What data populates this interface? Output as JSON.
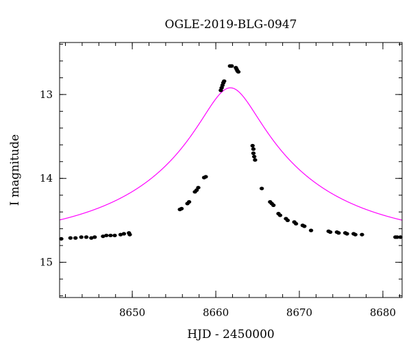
{
  "chart_data": {
    "type": "scatter",
    "title": "OGLE-2019-BLG-0947",
    "xlabel": "HJD - 2450000",
    "ylabel": "I magnitude",
    "xlim": [
      8641.3,
      8682.3
    ],
    "ylim": [
      15.42,
      12.38
    ],
    "y_inverted": true,
    "grid": false,
    "x_major_ticks": [
      8650,
      8660,
      8670,
      8680
    ],
    "x_minor_step": 2,
    "y_major_ticks": [
      13,
      14,
      15
    ],
    "y_minor_step": 0.2,
    "colors": {
      "points": "#000000",
      "model": "#ff00ff",
      "axes": "#000000"
    },
    "series": [
      {
        "kind": "points",
        "x": [
          8641.5,
          8642.6,
          8643.2,
          8643.9,
          8644.5,
          8645.1,
          8645.5,
          8646.5,
          8646.9,
          8647.4,
          8647.9,
          8648.6,
          8649.0,
          8649.6,
          8649.7,
          8655.7,
          8655.9,
          8656.6,
          8656.8,
          8657.5,
          8657.7,
          8657.9,
          8658.6,
          8658.8,
          8660.6,
          8660.7,
          8660.8,
          8660.9,
          8661.0,
          8661.7,
          8661.9,
          8662.4,
          8662.5,
          8662.6,
          8662.7,
          8664.4,
          8664.5,
          8664.5,
          8664.6,
          8664.7,
          8665.5,
          8666.5,
          8666.7,
          8666.9,
          8667.5,
          8667.7,
          8668.4,
          8668.6,
          8669.4,
          8669.6,
          8670.4,
          8670.6,
          8671.4,
          8673.5,
          8673.7,
          8674.5,
          8674.7,
          8675.5,
          8675.7,
          8676.5,
          8676.7,
          8677.5,
          8681.5,
          8681.7,
          8682.1
        ],
        "y": [
          14.72,
          14.71,
          14.71,
          14.7,
          14.7,
          14.71,
          14.7,
          14.69,
          14.68,
          14.68,
          14.68,
          14.67,
          14.66,
          14.65,
          14.67,
          14.37,
          14.36,
          14.3,
          14.28,
          14.16,
          14.14,
          14.11,
          13.99,
          13.98,
          12.95,
          12.92,
          12.89,
          12.86,
          12.84,
          12.66,
          12.66,
          12.68,
          12.7,
          12.72,
          12.73,
          13.61,
          13.65,
          13.7,
          13.74,
          13.78,
          14.12,
          14.28,
          14.3,
          14.32,
          14.42,
          14.44,
          14.48,
          14.5,
          14.52,
          14.54,
          14.56,
          14.57,
          14.62,
          14.63,
          14.64,
          14.64,
          14.65,
          14.65,
          14.66,
          14.66,
          14.67,
          14.67,
          14.7,
          14.7,
          14.7
        ]
      },
      {
        "kind": "model_curve",
        "model": {
          "t0": 8661.75,
          "u0": 0.154,
          "tE": 21.0,
          "I_source": 15.0,
          "I_blend": 16.55
        }
      }
    ]
  }
}
